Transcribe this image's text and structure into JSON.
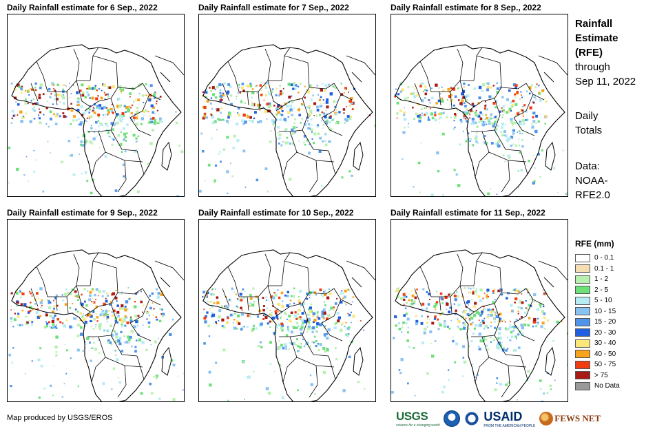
{
  "panels": [
    {
      "title": "Daily Rainfall estimate for 6 Sep., 2022",
      "seed": 6
    },
    {
      "title": "Daily Rainfall estimate for 7 Sep., 2022",
      "seed": 7
    },
    {
      "title": "Daily Rainfall estimate for 8 Sep., 2022",
      "seed": 8
    },
    {
      "title": "Daily Rainfall estimate for 9 Sep., 2022",
      "seed": 9
    },
    {
      "title": "Daily Rainfall estimate for 10 Sep., 2022",
      "seed": 10
    },
    {
      "title": "Daily Rainfall estimate for 11 Sep., 2022",
      "seed": 11
    }
  ],
  "sidebar": {
    "heading_line1": "Rainfall",
    "heading_line2": "Estimate",
    "heading_line3": "(RFE)",
    "through_line1": "through",
    "through_line2": "Sep 11, 2022",
    "totals_line1": "Daily",
    "totals_line2": "Totals",
    "data_line1": "Data:",
    "data_line2": "NOAA-",
    "data_line3": "RFE2.0"
  },
  "legend": {
    "title": "RFE (mm)",
    "items": [
      {
        "label": "0 - 0.1",
        "color": "#ffffff"
      },
      {
        "label": "0.1 - 1",
        "color": "#f5deb3"
      },
      {
        "label": "1 - 2",
        "color": "#b8f0b0"
      },
      {
        "label": "2 - 5",
        "color": "#6ee07a"
      },
      {
        "label": "5 - 10",
        "color": "#b8ecf5"
      },
      {
        "label": "10 - 15",
        "color": "#88c2f2"
      },
      {
        "label": "15 - 20",
        "color": "#4f93ea"
      },
      {
        "label": "20 - 30",
        "color": "#1f5fe0"
      },
      {
        "label": "30 - 40",
        "color": "#fbe67a"
      },
      {
        "label": "40 - 50",
        "color": "#f7a41c"
      },
      {
        "label": "50 - 75",
        "color": "#f03c10"
      },
      {
        "label": "> 75",
        "color": "#a81a14"
      },
      {
        "label": "No Data",
        "color": "#999999"
      }
    ]
  },
  "credit": "Map produced by USGS/EROS",
  "logos": {
    "usgs": "USGS",
    "usgs_tagline": "science for a changing world",
    "usaid": "USAID",
    "usaid_tagline": "FROM THE AMERICAN PEOPLE",
    "fews": "FEWS NET"
  }
}
